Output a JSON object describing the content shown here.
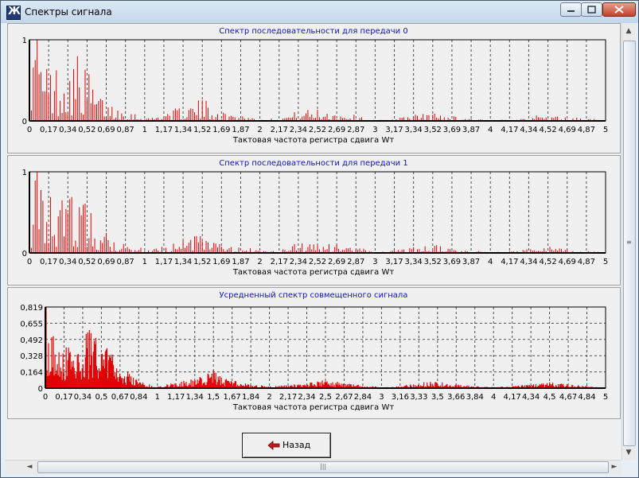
{
  "window": {
    "title": "Спектры сигнала"
  },
  "back_button": {
    "label": "Назад"
  },
  "icons": {
    "app": "app-icon",
    "minimize": "minimize-icon",
    "maximize": "maximize-icon",
    "close": "close-icon",
    "back": "arrow-left-icon"
  },
  "colors": {
    "series": "#e00000",
    "title": "#1010c8",
    "grid": "#505050"
  },
  "chart_data": [
    {
      "type": "bar",
      "title": "Спектр  последовательности для передачи 0",
      "xlabel": "Тактовая частота регистра сдвига Wт",
      "ylabel": "",
      "xlim": [
        0,
        5
      ],
      "ylim": [
        0,
        1
      ],
      "grid": true,
      "x_tick_labels": [
        "0",
        "0,17",
        "0,34",
        "0,52",
        "0,69",
        "0,87",
        "1",
        "1,17",
        "1,34",
        "1,52",
        "1,69",
        "1,87",
        "2",
        "2,17",
        "2,34",
        "2,52",
        "2,69",
        "2,87",
        "3",
        "3,17",
        "3,34",
        "3,52",
        "3,69",
        "3,87",
        "4",
        "4,17",
        "4,34",
        "4,52",
        "4,69",
        "4,87",
        "5"
      ],
      "y_tick_labels": [
        "0",
        "1"
      ],
      "envelope": {
        "x": [
          0,
          0.05,
          0.1,
          0.17,
          0.25,
          0.34,
          0.43,
          0.52,
          0.6,
          0.69,
          0.8,
          0.87,
          0.95,
          1.05,
          1.17,
          1.34,
          1.45,
          1.52,
          1.62,
          1.69,
          1.87,
          2.0,
          2.17,
          2.34,
          2.45,
          2.52,
          2.69,
          2.87,
          3.0,
          3.17,
          3.34,
          3.45,
          3.52,
          3.69,
          3.87,
          4.0,
          4.17,
          4.34,
          4.5,
          4.69,
          4.87,
          5.0
        ],
        "y": [
          0.45,
          1.0,
          0.8,
          0.72,
          0.7,
          0.8,
          0.85,
          0.6,
          0.35,
          0.25,
          0.16,
          0.15,
          0.07,
          0.04,
          0.12,
          0.18,
          0.25,
          0.27,
          0.18,
          0.1,
          0.08,
          0.02,
          0.04,
          0.13,
          0.15,
          0.16,
          0.1,
          0.07,
          0.01,
          0.03,
          0.08,
          0.1,
          0.1,
          0.06,
          0.03,
          0.01,
          0.02,
          0.06,
          0.08,
          0.05,
          0.03,
          0.0
        ]
      }
    },
    {
      "type": "bar",
      "title": "Спектр последовательности для передачи 1",
      "xlabel": "Тактовая частота регистра сдвига Wт",
      "ylabel": "",
      "xlim": [
        0,
        5
      ],
      "ylim": [
        0,
        1
      ],
      "grid": true,
      "x_tick_labels": [
        "0",
        "0,17",
        "0,34",
        "0,52",
        "0,69",
        "0,87",
        "1",
        "1,17",
        "1,34",
        "1,52",
        "1,69",
        "1,87",
        "2",
        "2,17",
        "2,34",
        "2,52",
        "2,69",
        "2,87",
        "3",
        "3,17",
        "3,34",
        "3,52",
        "3,69",
        "3,87",
        "4",
        "4,17",
        "4,34",
        "4,52",
        "4,69",
        "4,87",
        "5"
      ],
      "y_tick_labels": [
        "0",
        "1"
      ],
      "envelope": {
        "x": [
          0,
          0.05,
          0.1,
          0.17,
          0.25,
          0.34,
          0.43,
          0.52,
          0.6,
          0.69,
          0.8,
          0.87,
          0.95,
          1.05,
          1.17,
          1.34,
          1.45,
          1.52,
          1.62,
          1.69,
          1.87,
          2.0,
          2.17,
          2.34,
          2.45,
          2.52,
          2.69,
          2.87,
          3.0,
          3.17,
          3.34,
          3.45,
          3.52,
          3.69,
          3.87,
          4.0,
          4.17,
          4.34,
          4.5,
          4.69,
          4.87,
          5.0
        ],
        "y": [
          0.45,
          1.0,
          0.8,
          0.72,
          0.7,
          0.8,
          0.85,
          0.6,
          0.35,
          0.25,
          0.16,
          0.15,
          0.07,
          0.04,
          0.12,
          0.18,
          0.25,
          0.27,
          0.18,
          0.1,
          0.08,
          0.02,
          0.04,
          0.13,
          0.15,
          0.16,
          0.1,
          0.07,
          0.01,
          0.03,
          0.08,
          0.1,
          0.1,
          0.06,
          0.03,
          0.01,
          0.02,
          0.06,
          0.08,
          0.05,
          0.03,
          0.0
        ]
      }
    },
    {
      "type": "area",
      "title": "Усредненный спектр совмещенного сигнала",
      "xlabel": "Тактовая частота регистра сдвига Wт",
      "ylabel": "",
      "xlim": [
        0,
        5
      ],
      "ylim": [
        0,
        0.819
      ],
      "grid": true,
      "x_tick_labels": [
        "0",
        "0,17",
        "0,34",
        "0,5",
        "0,67",
        "0,84",
        "1",
        "1,17",
        "1,34",
        "1,5",
        "1,67",
        "1,84",
        "2",
        "2,17",
        "2,34",
        "2,5",
        "2,67",
        "2,84",
        "3",
        "3,16",
        "3,33",
        "3,5",
        "3,66",
        "3,84",
        "4",
        "4,17",
        "4,34",
        "4,5",
        "4,67",
        "4,84",
        "5"
      ],
      "y_tick_labels": [
        "0",
        "0,164",
        "0,328",
        "0,492",
        "0,655",
        "0,819"
      ],
      "envelope": {
        "x": [
          0,
          0.03,
          0.08,
          0.17,
          0.25,
          0.34,
          0.42,
          0.5,
          0.58,
          0.67,
          0.75,
          0.84,
          0.92,
          1.0,
          1.17,
          1.34,
          1.42,
          1.5,
          1.58,
          1.67,
          1.84,
          2.0,
          2.17,
          2.34,
          2.42,
          2.5,
          2.58,
          2.67,
          2.84,
          3.0,
          3.16,
          3.33,
          3.42,
          3.5,
          3.58,
          3.66,
          3.84,
          4.0,
          4.17,
          4.34,
          4.42,
          4.5,
          4.58,
          4.67,
          4.84,
          5.0
        ],
        "y": [
          0.82,
          0.7,
          0.6,
          0.45,
          0.5,
          0.55,
          0.62,
          0.55,
          0.45,
          0.28,
          0.15,
          0.08,
          0.04,
          0.02,
          0.06,
          0.1,
          0.13,
          0.18,
          0.12,
          0.08,
          0.04,
          0.02,
          0.03,
          0.06,
          0.08,
          0.09,
          0.07,
          0.05,
          0.03,
          0.01,
          0.02,
          0.05,
          0.07,
          0.07,
          0.06,
          0.04,
          0.02,
          0.01,
          0.02,
          0.04,
          0.05,
          0.06,
          0.05,
          0.04,
          0.02,
          0.0
        ]
      }
    }
  ]
}
